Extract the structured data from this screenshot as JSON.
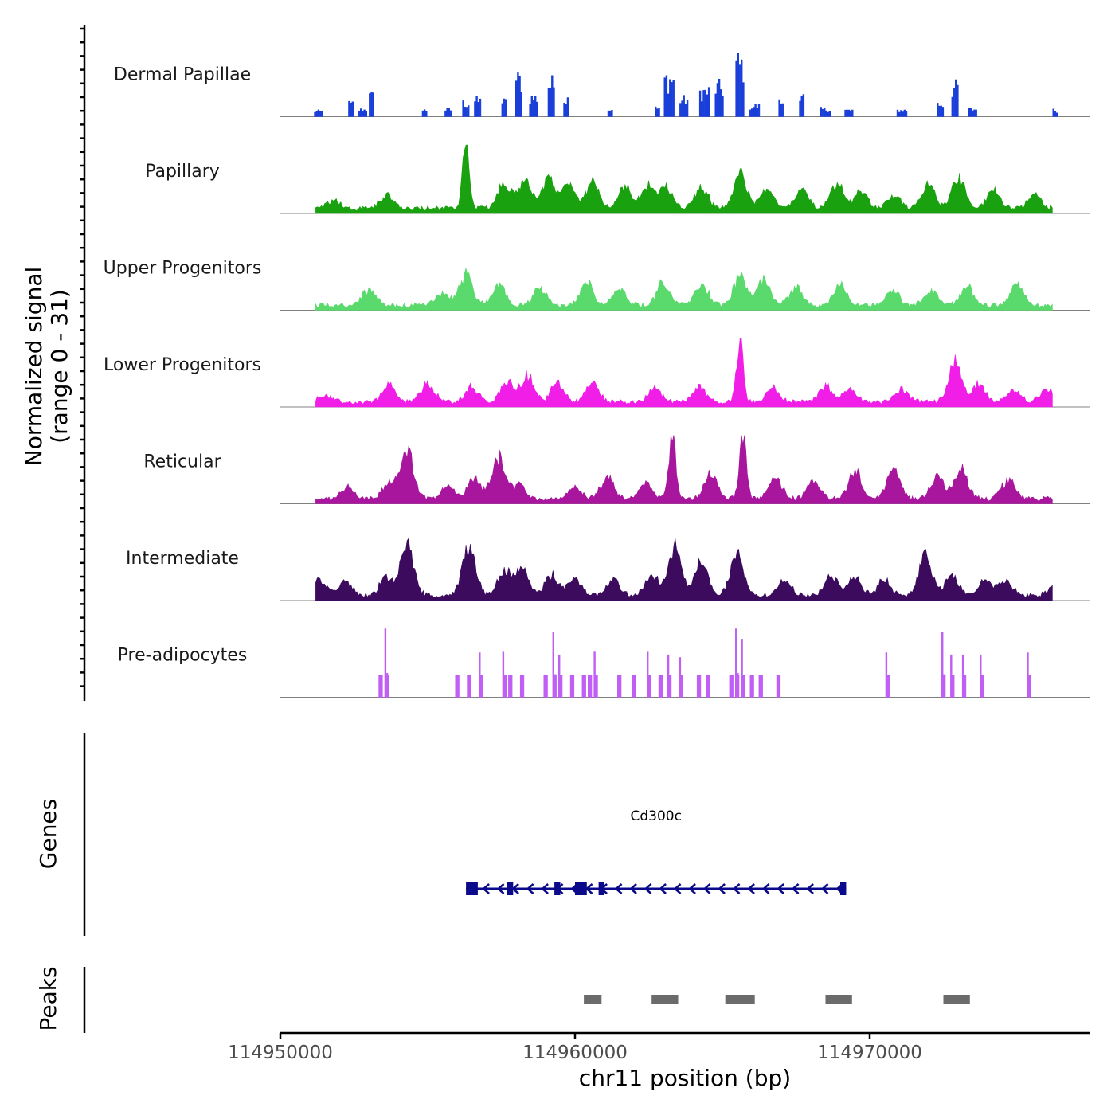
{
  "chart_data": {
    "type": "coverage",
    "ylabel_line1": "Normalized signal",
    "ylabel_line2": "(range 0 - 31)",
    "y_range": [
      0,
      31
    ],
    "xlabel": "chr11 position (bp)",
    "x_range": [
      114950000,
      114977500
    ],
    "x_ticks": [
      114950000,
      114960000,
      114970000
    ],
    "x_tick_labels": [
      "114950000",
      "114960000",
      "114970000"
    ],
    "tracks": [
      {
        "name": "Dermal Papillae",
        "color": "#1a3fd9",
        "style": "sparse",
        "peaks": [
          [
            114951300,
            0.1
          ],
          [
            114952400,
            0.24
          ],
          [
            114952800,
            0.13
          ],
          [
            114953100,
            0.38
          ],
          [
            114954900,
            0.12
          ],
          [
            114955700,
            0.13
          ],
          [
            114956300,
            0.26
          ],
          [
            114956700,
            0.3
          ],
          [
            114957600,
            0.28
          ],
          [
            114958100,
            0.7
          ],
          [
            114958600,
            0.36
          ],
          [
            114959200,
            0.62
          ],
          [
            114959700,
            0.34
          ],
          [
            114961200,
            0.14
          ],
          [
            114962800,
            0.16
          ],
          [
            114963200,
            0.72
          ],
          [
            114963700,
            0.32
          ],
          [
            114964400,
            0.48
          ],
          [
            114964900,
            0.55
          ],
          [
            114965600,
            1.0
          ],
          [
            114966100,
            0.2
          ],
          [
            114967000,
            0.28
          ],
          [
            114967700,
            0.36
          ],
          [
            114968500,
            0.14
          ],
          [
            114969300,
            0.12
          ],
          [
            114971100,
            0.12
          ],
          [
            114972400,
            0.24
          ],
          [
            114972900,
            0.55
          ],
          [
            114973500,
            0.14
          ],
          [
            114976300,
            0.12
          ]
        ]
      },
      {
        "name": "Papillary",
        "color": "#1aa10f",
        "style": "dense",
        "peaks": [
          [
            114951800,
            0.12
          ],
          [
            114953600,
            0.18
          ],
          [
            114956300,
            1.0
          ],
          [
            114957600,
            0.36
          ],
          [
            114958300,
            0.4
          ],
          [
            114959100,
            0.42
          ],
          [
            114959800,
            0.34
          ],
          [
            114960600,
            0.38
          ],
          [
            114961700,
            0.3
          ],
          [
            114962500,
            0.34
          ],
          [
            114963100,
            0.3
          ],
          [
            114964300,
            0.3
          ],
          [
            114965600,
            0.52
          ],
          [
            114966500,
            0.28
          ],
          [
            114967700,
            0.28
          ],
          [
            114968900,
            0.36
          ],
          [
            114969700,
            0.24
          ],
          [
            114970800,
            0.22
          ],
          [
            114972000,
            0.34
          ],
          [
            114973000,
            0.46
          ],
          [
            114974200,
            0.28
          ],
          [
            114975600,
            0.2
          ]
        ]
      },
      {
        "name": "Upper Progenitors",
        "color": "#5ada6c",
        "style": "dense",
        "peaks": [
          [
            114953000,
            0.22
          ],
          [
            114955500,
            0.2
          ],
          [
            114956300,
            0.45
          ],
          [
            114957400,
            0.28
          ],
          [
            114958800,
            0.24
          ],
          [
            114960400,
            0.32
          ],
          [
            114961500,
            0.24
          ],
          [
            114963000,
            0.32
          ],
          [
            114964300,
            0.3
          ],
          [
            114965600,
            0.42
          ],
          [
            114966400,
            0.38
          ],
          [
            114967500,
            0.26
          ],
          [
            114969000,
            0.28
          ],
          [
            114970800,
            0.2
          ],
          [
            114972100,
            0.22
          ],
          [
            114973300,
            0.26
          ],
          [
            114975000,
            0.3
          ]
        ]
      },
      {
        "name": "Lower Progenitors",
        "color": "#f01ee6",
        "style": "dense",
        "peaks": [
          [
            114951500,
            0.1
          ],
          [
            114953700,
            0.24
          ],
          [
            114955000,
            0.26
          ],
          [
            114956500,
            0.22
          ],
          [
            114957700,
            0.3
          ],
          [
            114958400,
            0.38
          ],
          [
            114959400,
            0.26
          ],
          [
            114960600,
            0.26
          ],
          [
            114962700,
            0.18
          ],
          [
            114964200,
            0.22
          ],
          [
            114965600,
            1.0
          ],
          [
            114966700,
            0.2
          ],
          [
            114968500,
            0.24
          ],
          [
            114969300,
            0.2
          ],
          [
            114971100,
            0.18
          ],
          [
            114972900,
            0.56
          ],
          [
            114973700,
            0.26
          ],
          [
            114974900,
            0.16
          ],
          [
            114976000,
            0.18
          ]
        ]
      },
      {
        "name": "Reticular",
        "color": "#a8169e",
        "style": "dense",
        "peaks": [
          [
            114952300,
            0.16
          ],
          [
            114953700,
            0.22
          ],
          [
            114954300,
            0.7
          ],
          [
            114955700,
            0.18
          ],
          [
            114956600,
            0.3
          ],
          [
            114957400,
            0.58
          ],
          [
            114958100,
            0.2
          ],
          [
            114960000,
            0.16
          ],
          [
            114961100,
            0.3
          ],
          [
            114962400,
            0.22
          ],
          [
            114963300,
            1.0
          ],
          [
            114964600,
            0.36
          ],
          [
            114965700,
            1.0
          ],
          [
            114966800,
            0.3
          ],
          [
            114968100,
            0.26
          ],
          [
            114969500,
            0.4
          ],
          [
            114970800,
            0.4
          ],
          [
            114972300,
            0.32
          ],
          [
            114973100,
            0.44
          ],
          [
            114974700,
            0.28
          ]
        ]
      },
      {
        "name": "Intermediate",
        "color": "#3c0b5d",
        "style": "dense",
        "peaks": [
          [
            114951300,
            0.24
          ],
          [
            114952200,
            0.22
          ],
          [
            114953600,
            0.26
          ],
          [
            114954300,
            0.74
          ],
          [
            114956400,
            0.72
          ],
          [
            114957600,
            0.34
          ],
          [
            114958200,
            0.4
          ],
          [
            114959200,
            0.3
          ],
          [
            114960000,
            0.26
          ],
          [
            114961300,
            0.24
          ],
          [
            114962600,
            0.3
          ],
          [
            114963400,
            0.72
          ],
          [
            114964300,
            0.5
          ],
          [
            114965500,
            0.6
          ],
          [
            114967100,
            0.22
          ],
          [
            114968700,
            0.3
          ],
          [
            114969500,
            0.24
          ],
          [
            114970500,
            0.22
          ],
          [
            114971900,
            0.6
          ],
          [
            114972800,
            0.3
          ],
          [
            114973900,
            0.22
          ],
          [
            114974600,
            0.22
          ],
          [
            114976300,
            0.16
          ]
        ]
      },
      {
        "name": "Pre-adipocytes",
        "color": "#c05ef6",
        "style": "spikes",
        "peaks": [
          [
            114953400,
            0.32
          ],
          [
            114953600,
            1.0
          ],
          [
            114956000,
            0.32
          ],
          [
            114956400,
            0.32
          ],
          [
            114956800,
            0.65
          ],
          [
            114957600,
            0.66
          ],
          [
            114957800,
            0.32
          ],
          [
            114958200,
            0.32
          ],
          [
            114959000,
            0.32
          ],
          [
            114959300,
            0.95
          ],
          [
            114959500,
            0.62
          ],
          [
            114959900,
            0.32
          ],
          [
            114960300,
            0.32
          ],
          [
            114960500,
            0.32
          ],
          [
            114960700,
            0.66
          ],
          [
            114961500,
            0.32
          ],
          [
            114962000,
            0.32
          ],
          [
            114962500,
            0.66
          ],
          [
            114962900,
            0.32
          ],
          [
            114963200,
            0.62
          ],
          [
            114963600,
            0.58
          ],
          [
            114964200,
            0.32
          ],
          [
            114964500,
            0.32
          ],
          [
            114965300,
            0.32
          ],
          [
            114965500,
            1.0
          ],
          [
            114965700,
            0.85
          ],
          [
            114966000,
            0.32
          ],
          [
            114966300,
            0.32
          ],
          [
            114966900,
            0.32
          ],
          [
            114970600,
            0.65
          ],
          [
            114972500,
            0.95
          ],
          [
            114972800,
            0.62
          ],
          [
            114973200,
            0.62
          ],
          [
            114973800,
            0.62
          ],
          [
            114975400,
            0.65
          ]
        ]
      }
    ],
    "genes": {
      "label": "Genes",
      "items": [
        {
          "name": "Cd300c",
          "start": 114956300,
          "end": 114969200,
          "strand": "-",
          "exons": [
            [
              114956300,
              114956700
            ],
            [
              114957700,
              114957900
            ],
            [
              114959300,
              114959500
            ],
            [
              114960000,
              114960400
            ],
            [
              114960800,
              114961000
            ],
            [
              114969000,
              114969200
            ]
          ]
        }
      ]
    },
    "peaks": {
      "label": "Peaks",
      "regions": [
        [
          114960300,
          114960900
        ],
        [
          114962600,
          114963500
        ],
        [
          114965100,
          114966100
        ],
        [
          114968500,
          114969400
        ],
        [
          114972500,
          114973400
        ]
      ]
    }
  }
}
